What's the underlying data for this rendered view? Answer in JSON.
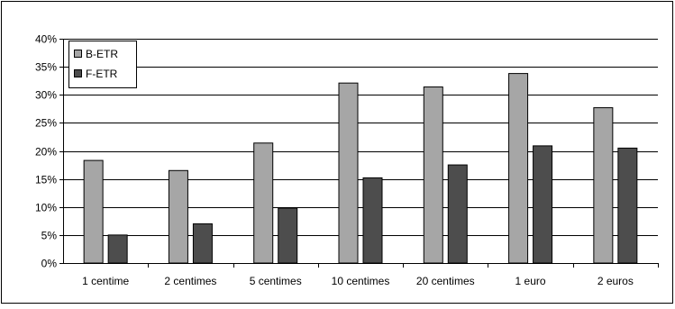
{
  "chart_data": {
    "type": "bar",
    "title": "",
    "xlabel": "",
    "ylabel": "",
    "categories": [
      "1 centime",
      "2 centimes",
      "5 centimes",
      "10 centimes",
      "20 centimes",
      "1 euro",
      "2 euros"
    ],
    "series": [
      {
        "name": "B-ETR",
        "values": [
          18.3,
          16.5,
          21.4,
          32.1,
          31.4,
          33.8,
          27.7
        ],
        "color": "#A6A6A6"
      },
      {
        "name": "F-ETR",
        "values": [
          5.0,
          7.0,
          9.8,
          15.2,
          17.5,
          20.9,
          20.5
        ],
        "color": "#4D4D4D"
      }
    ],
    "ylim": [
      0,
      40
    ],
    "yticks": [
      0,
      5,
      10,
      15,
      20,
      25,
      30,
      35,
      40
    ],
    "ytick_format": "percent",
    "grid": true,
    "legend_position": "top-left"
  }
}
